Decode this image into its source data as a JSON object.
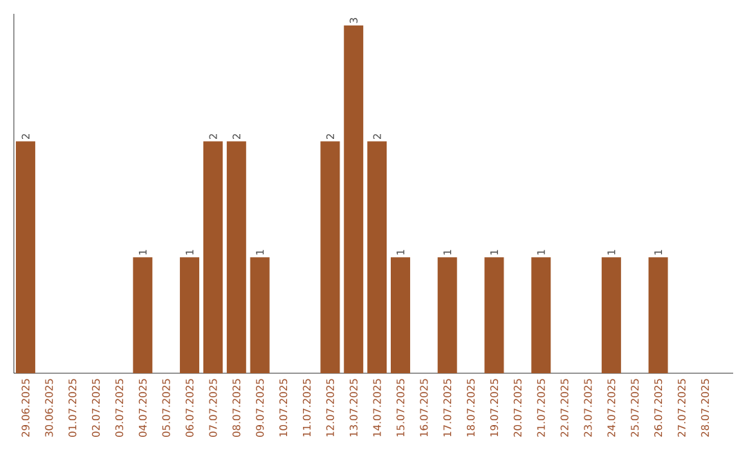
{
  "chart_data": {
    "type": "bar",
    "categories": [
      "29.06.2025",
      "30.06.2025",
      "01.07.2025",
      "02.07.2025",
      "03.07.2025",
      "04.07.2025",
      "05.07.2025",
      "06.07.2025",
      "07.07.2025",
      "08.07.2025",
      "09.07.2025",
      "10.07.2025",
      "11.07.2025",
      "12.07.2025",
      "13.07.2025",
      "14.07.2025",
      "15.07.2025",
      "16.07.2025",
      "17.07.2025",
      "18.07.2025",
      "19.07.2025",
      "20.07.2025",
      "21.07.2025",
      "22.07.2025",
      "23.07.2025",
      "24.07.2025",
      "25.07.2025",
      "26.07.2025",
      "27.07.2025",
      "28.07.2025"
    ],
    "values": [
      2,
      0,
      0,
      0,
      0,
      1,
      0,
      1,
      2,
      2,
      1,
      0,
      0,
      2,
      3,
      2,
      1,
      0,
      1,
      0,
      1,
      0,
      1,
      0,
      0,
      1,
      0,
      1,
      0,
      0
    ],
    "value_labels": [
      "2",
      null,
      null,
      null,
      null,
      "1",
      null,
      "1",
      "2",
      "2",
      "1",
      null,
      null,
      "2",
      "3",
      "2",
      "1",
      null,
      "1",
      null,
      "1",
      null,
      "1",
      null,
      null,
      "1",
      null,
      "1",
      null,
      null
    ],
    "color": "#a0572a",
    "ylim": [
      0,
      3.1
    ],
    "tick_labels": "x"
  }
}
